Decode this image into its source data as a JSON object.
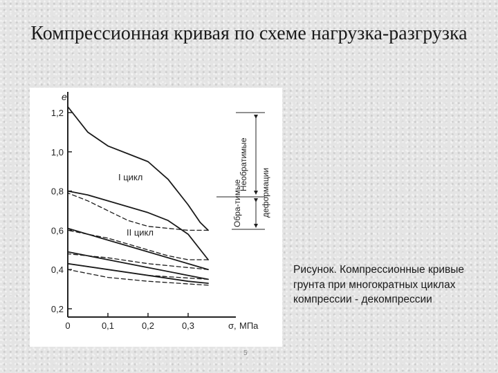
{
  "slide": {
    "title": "Компрессионная кривая по схеме нагрузка-разгрузка",
    "caption": "Рисунок. Компрессионные кривые грунта при многократных циклах компрессии - декомпрессии",
    "page_number": "5"
  },
  "chart_data": {
    "type": "line",
    "ylabel": "e",
    "xlabel_symbol": "σ,",
    "xunit": "МПа",
    "xlim": [
      0,
      0.4
    ],
    "ylim": [
      0.2,
      1.25
    ],
    "x_ticks": [
      "0",
      "0,1",
      "0,2",
      "0,3"
    ],
    "y_ticks": [
      "1,2",
      "1,0",
      "0,8",
      "0,6",
      "0,4",
      "0,2"
    ],
    "annotations": {
      "cycle1": "I цикл",
      "cycle2": "II цикл",
      "irreversible": "Необратимые",
      "reversible": "Обра-тимые",
      "deformations": "деформации"
    },
    "series": [
      {
        "style": "solid",
        "x": [
          0,
          0.05,
          0.1,
          0.15,
          0.2,
          0.25,
          0.3,
          0.33,
          0.35
        ],
        "y": [
          1.23,
          1.1,
          1.03,
          0.99,
          0.95,
          0.86,
          0.73,
          0.64,
          0.6
        ]
      },
      {
        "style": "dashed",
        "x": [
          0.35,
          0.3,
          0.25,
          0.2,
          0.15,
          0.1,
          0.05,
          0
        ],
        "y": [
          0.6,
          0.6,
          0.61,
          0.62,
          0.65,
          0.7,
          0.75,
          0.79
        ]
      },
      {
        "style": "solid",
        "x": [
          0,
          0.05,
          0.1,
          0.15,
          0.2,
          0.25,
          0.3,
          0.35
        ],
        "y": [
          0.8,
          0.78,
          0.75,
          0.72,
          0.69,
          0.65,
          0.58,
          0.45
        ]
      },
      {
        "style": "dashed",
        "x": [
          0.35,
          0.3,
          0.25,
          0.2,
          0.15,
          0.1,
          0.05,
          0
        ],
        "y": [
          0.45,
          0.45,
          0.47,
          0.5,
          0.53,
          0.56,
          0.58,
          0.6
        ]
      },
      {
        "style": "solid",
        "x": [
          0,
          0.1,
          0.2,
          0.3,
          0.35
        ],
        "y": [
          0.61,
          0.55,
          0.49,
          0.43,
          0.4
        ]
      },
      {
        "style": "dashed",
        "x": [
          0.35,
          0.3,
          0.2,
          0.1,
          0.05,
          0
        ],
        "y": [
          0.4,
          0.41,
          0.43,
          0.46,
          0.47,
          0.48
        ]
      },
      {
        "style": "solid",
        "x": [
          0,
          0.1,
          0.2,
          0.3,
          0.35
        ],
        "y": [
          0.49,
          0.45,
          0.41,
          0.37,
          0.35
        ]
      },
      {
        "style": "dashed",
        "x": [
          0.35,
          0.2,
          0.1,
          0
        ],
        "y": [
          0.35,
          0.37,
          0.4,
          0.43
        ]
      },
      {
        "style": "solid",
        "x": [
          0,
          0.1,
          0.2,
          0.3,
          0.35
        ],
        "y": [
          0.43,
          0.4,
          0.37,
          0.34,
          0.33
        ]
      },
      {
        "style": "dashed",
        "x": [
          0.35,
          0.2,
          0.1,
          0
        ],
        "y": [
          0.32,
          0.34,
          0.36,
          0.4
        ]
      }
    ]
  }
}
